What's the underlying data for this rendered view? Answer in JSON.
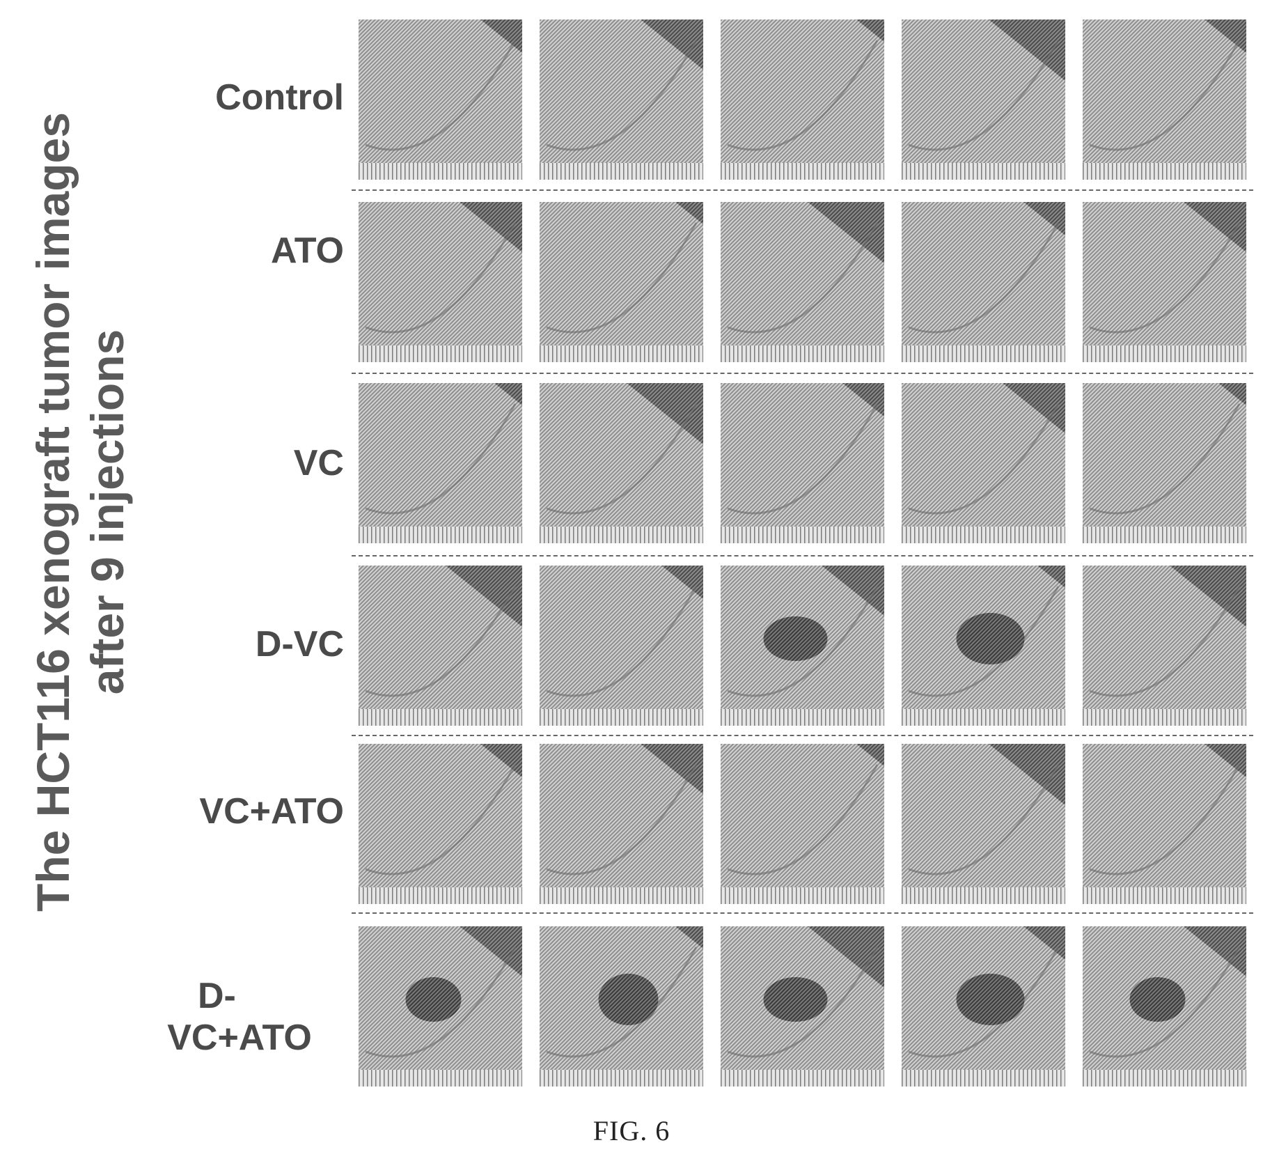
{
  "title": {
    "line1": "The HCT116 xenograft tumor images",
    "line2": "after 9 injections"
  },
  "rows": [
    {
      "label": "Control",
      "tumors": [
        0,
        0,
        0,
        0,
        0
      ]
    },
    {
      "label": "ATO",
      "tumors": [
        0,
        0,
        0,
        0,
        0
      ]
    },
    {
      "label": "VC",
      "tumors": [
        0,
        0,
        0,
        0,
        0
      ]
    },
    {
      "label": "D-VC",
      "tumors": [
        0,
        0,
        1,
        1,
        0
      ]
    },
    {
      "label": "VC+ATO",
      "tumors": [
        0,
        0,
        0,
        0,
        0
      ]
    },
    {
      "label_line1": "D-",
      "label_line2": "VC+ATO",
      "tumors": [
        1,
        1,
        1,
        1,
        1
      ]
    }
  ],
  "caption": "FIG. 6"
}
